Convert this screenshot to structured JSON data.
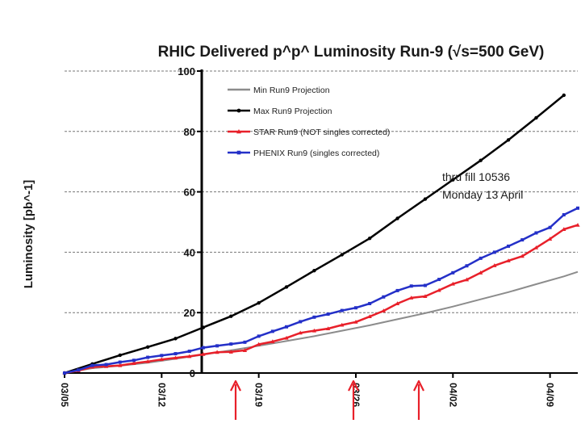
{
  "chart_data": {
    "type": "line",
    "title": "RHIC Delivered p^p^ Luminosity Run-9 (√s=500 GeV)",
    "xlabel": "",
    "ylabel": "Luminosity [pb^-1]",
    "ylim": [
      0,
      100
    ],
    "xlim": [
      0,
      37
    ],
    "grid": true,
    "yticks": [
      0,
      20,
      40,
      60,
      80,
      100
    ],
    "xtick_positions": [
      0,
      7,
      14,
      21,
      28,
      35
    ],
    "xtick_labels": [
      "03/05",
      "03/12",
      "03/19",
      "03/26",
      "04/02",
      "04/09"
    ],
    "legend_position": "top-left",
    "series": [
      {
        "name": "Min Run9 Projection",
        "color": "#8c8c8c",
        "marker": "none",
        "x": [
          0,
          2,
          4,
          6,
          8,
          10,
          12,
          14,
          16,
          18,
          20,
          22,
          24,
          26,
          28,
          30,
          32,
          34,
          36,
          37
        ],
        "y": [
          0,
          1.6,
          2.4,
          3.4,
          4.7,
          6.1,
          7.5,
          9.0,
          10.6,
          12.2,
          14.0,
          15.8,
          17.8,
          19.8,
          22.0,
          24.4,
          26.8,
          29.4,
          32.0,
          33.5
        ]
      },
      {
        "name": "Max Run9 Projection",
        "color": "#000000",
        "marker": "circle",
        "x": [
          0,
          2,
          4,
          6,
          8,
          10,
          12,
          14,
          16,
          18,
          20,
          22,
          24,
          26,
          28,
          30,
          32,
          34,
          36
        ],
        "y": [
          0,
          3.0,
          5.9,
          8.6,
          11.4,
          15.1,
          18.8,
          23.2,
          28.5,
          33.9,
          39.2,
          44.6,
          51.2,
          57.6,
          64.0,
          70.4,
          77.2,
          84.5,
          92.0
        ]
      },
      {
        "name": "STAR Run9 (NOT singles corrected)",
        "color": "#e8202a",
        "marker": "triangle",
        "x": [
          0,
          1,
          2,
          3,
          4,
          5,
          6,
          7,
          8,
          9,
          10,
          11,
          12,
          13,
          14,
          15,
          16,
          17,
          18,
          19,
          20,
          21,
          22,
          23,
          24,
          25,
          26,
          27,
          28,
          29,
          30,
          31,
          32,
          33,
          34,
          35,
          36,
          37
        ],
        "y": [
          0,
          0.8,
          2.0,
          2.2,
          2.5,
          3.2,
          3.8,
          4.5,
          5.0,
          5.5,
          6.2,
          6.9,
          7.0,
          7.5,
          9.5,
          10.4,
          11.6,
          13.3,
          14.0,
          14.7,
          15.9,
          16.9,
          18.7,
          20.6,
          23.0,
          24.9,
          25.4,
          27.4,
          29.5,
          30.9,
          33.2,
          35.6,
          37.2,
          38.7,
          41.5,
          44.4,
          47.6,
          49.0
        ]
      },
      {
        "name": "PHENIX Run9 (singles corrected)",
        "color": "#2430c8",
        "marker": "square",
        "x": [
          0,
          1,
          2,
          3,
          4,
          5,
          6,
          7,
          8,
          9,
          10,
          11,
          12,
          13,
          14,
          15,
          16,
          17,
          18,
          19,
          20,
          21,
          22,
          23,
          24,
          25,
          26,
          27,
          28,
          29,
          30,
          31,
          32,
          33,
          34,
          35,
          36,
          37
        ],
        "y": [
          0,
          1.0,
          2.5,
          2.8,
          3.6,
          4.2,
          5.2,
          5.8,
          6.4,
          7.2,
          8.4,
          9.0,
          9.6,
          10.2,
          12.2,
          13.8,
          15.3,
          17.0,
          18.5,
          19.5,
          20.7,
          21.6,
          23.0,
          25.2,
          27.3,
          28.8,
          29.0,
          31.0,
          33.2,
          35.5,
          38.0,
          40.0,
          42.0,
          44.1,
          46.4,
          48.2,
          52.4,
          54.6
        ]
      }
    ],
    "annotations": [
      "thru fill 10536",
      "Monday 13 April"
    ]
  }
}
